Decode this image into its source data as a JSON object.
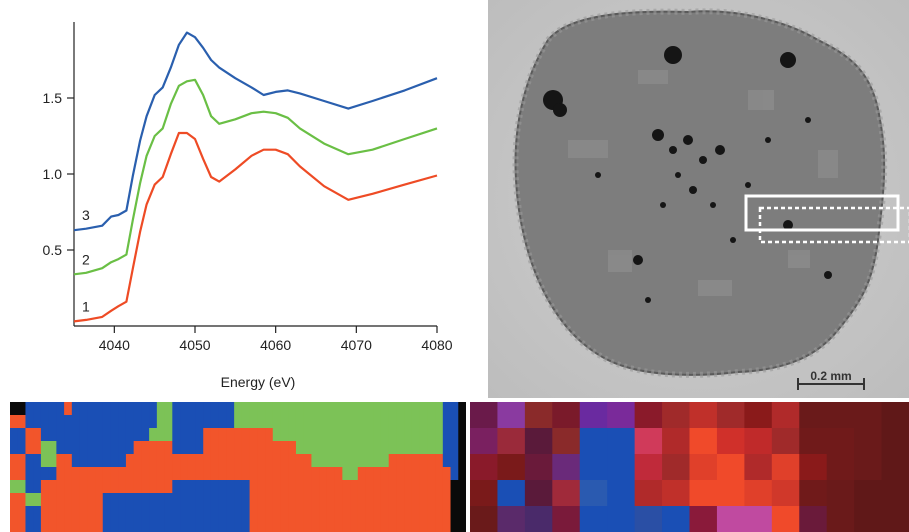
{
  "chart_data": {
    "type": "line",
    "title": "",
    "xlabel": "Energy (eV)",
    "ylabel": "",
    "xlim": [
      4035,
      4080
    ],
    "ylim": [
      0,
      2.0
    ],
    "xticks": [
      4040,
      4050,
      4060,
      4070,
      4080
    ],
    "yticks": [
      0.5,
      1.0,
      1.5
    ],
    "ytick_labels": [
      "0.5",
      "1.0",
      "1.5"
    ],
    "grid": false,
    "series": [
      {
        "name": "1",
        "color": "#ee4b25",
        "points": [
          [
            4035.0,
            0.03
          ],
          [
            4036.5,
            0.04
          ],
          [
            4038.5,
            0.06
          ],
          [
            4039.6,
            0.1
          ],
          [
            4040.5,
            0.13
          ],
          [
            4041.5,
            0.16
          ],
          [
            4042.3,
            0.38
          ],
          [
            4043.2,
            0.62
          ],
          [
            4044.0,
            0.8
          ],
          [
            4045.0,
            0.93
          ],
          [
            4046.0,
            0.98
          ],
          [
            4047.0,
            1.13
          ],
          [
            4048.0,
            1.27
          ],
          [
            4049.0,
            1.27
          ],
          [
            4050.0,
            1.23
          ],
          [
            4051.0,
            1.1
          ],
          [
            4052.0,
            0.98
          ],
          [
            4053.0,
            0.95
          ],
          [
            4055.0,
            1.03
          ],
          [
            4057.0,
            1.12
          ],
          [
            4058.5,
            1.16
          ],
          [
            4060.0,
            1.16
          ],
          [
            4061.5,
            1.13
          ],
          [
            4063.0,
            1.05
          ],
          [
            4066.0,
            0.92
          ],
          [
            4069.0,
            0.83
          ],
          [
            4072.0,
            0.87
          ],
          [
            4076.0,
            0.93
          ],
          [
            4080.0,
            0.99
          ]
        ]
      },
      {
        "name": "2",
        "color": "#6abf45",
        "points": [
          [
            4035.0,
            0.34
          ],
          [
            4036.5,
            0.35
          ],
          [
            4038.5,
            0.38
          ],
          [
            4039.6,
            0.42
          ],
          [
            4040.5,
            0.44
          ],
          [
            4041.5,
            0.47
          ],
          [
            4042.3,
            0.7
          ],
          [
            4043.2,
            0.94
          ],
          [
            4044.0,
            1.12
          ],
          [
            4045.0,
            1.25
          ],
          [
            4046.0,
            1.3
          ],
          [
            4047.0,
            1.46
          ],
          [
            4048.0,
            1.58
          ],
          [
            4049.0,
            1.61
          ],
          [
            4050.0,
            1.62
          ],
          [
            4051.0,
            1.52
          ],
          [
            4052.0,
            1.38
          ],
          [
            4053.0,
            1.33
          ],
          [
            4055.0,
            1.36
          ],
          [
            4057.0,
            1.4
          ],
          [
            4058.5,
            1.41
          ],
          [
            4060.0,
            1.4
          ],
          [
            4061.5,
            1.37
          ],
          [
            4063.0,
            1.3
          ],
          [
            4066.0,
            1.2
          ],
          [
            4069.0,
            1.13
          ],
          [
            4072.0,
            1.16
          ],
          [
            4076.0,
            1.23
          ],
          [
            4080.0,
            1.3
          ]
        ]
      },
      {
        "name": "3",
        "color": "#2a5fae",
        "points": [
          [
            4035.0,
            0.63
          ],
          [
            4036.5,
            0.64
          ],
          [
            4038.5,
            0.66
          ],
          [
            4039.6,
            0.72
          ],
          [
            4040.5,
            0.73
          ],
          [
            4041.5,
            0.76
          ],
          [
            4042.3,
            0.99
          ],
          [
            4043.2,
            1.22
          ],
          [
            4044.0,
            1.38
          ],
          [
            4045.0,
            1.52
          ],
          [
            4046.0,
            1.57
          ],
          [
            4047.0,
            1.7
          ],
          [
            4048.0,
            1.85
          ],
          [
            4049.0,
            1.93
          ],
          [
            4050.0,
            1.9
          ],
          [
            4051.0,
            1.83
          ],
          [
            4052.0,
            1.75
          ],
          [
            4053.0,
            1.7
          ],
          [
            4055.0,
            1.63
          ],
          [
            4057.0,
            1.57
          ],
          [
            4058.5,
            1.52
          ],
          [
            4060.0,
            1.54
          ],
          [
            4061.5,
            1.55
          ],
          [
            4063.0,
            1.53
          ],
          [
            4066.0,
            1.48
          ],
          [
            4069.0,
            1.43
          ],
          [
            4072.0,
            1.48
          ],
          [
            4076.0,
            1.55
          ],
          [
            4080.0,
            1.63
          ]
        ]
      }
    ]
  },
  "micrograph": {
    "scale_bar_label": "0.2 mm"
  },
  "map_left": {
    "colors": {
      "B": "#1a4fb5",
      "O": "#f2552b",
      "G": "#7cc257",
      "K": "#0a0a0a",
      "D": "#3a3a4a"
    },
    "rows": [
      "KKBBBBBOBBBBBBBBBBBGGBBBBBBBBGGGGGGGGGGGGGGGGGGGGGGGGGGGBBK",
      "OOBBBBBBBBBBBBBBBBBGGBBBBBBBBGGGGGGGGGGGGGGGGGGGGGGGGGGGBBK",
      "BBOOBBBBBBBBBBBBBBGGGBBBBOOOOOOOOOGGGGGGGGGGGGGGGGGGGGGGBBK",
      "BBOOGGBBBBBBBBBBOOOOOBBBBOOOOOOOOOOOOGGGGGGGGGGGGGGGGGGGBBK",
      "OOBBGGOOBBBBBBBOOOOOOOOOOOOOOOOOOOOOOOOGGGGGGGGGGOOOOOOOBBK",
      "OOBBBBOOOOOOOOOOOOOOOOOOOOOOOOOOOOOOOOOOOOOGGOOOOOOOOOOOOBK",
      "GGBBOOOOOOOOOOOOOOOOOBBBBBBBBBBOOOOOOOOOOOOOOOOOOOOOOOOOOKK",
      "OOGGOOOOOOOOBBBBBBBBBBBBBBBBBBBOOOOOOOOOOOOOOOOOOOOOOOOOOKK",
      "OOBBOOOOOOOOBBBBBBBBBBBBBBBBBBBOOOOOOOOOOOOOOOOOOOOOOOOOOKK",
      "OOBBOOOOOOOOBBBBBBBBBBBBBBBBBBBOOOOOOOOOOOOOOOOOOOOOOOOOOKK"
    ]
  },
  "map_right": {
    "rows": [
      [
        "#6a1a4a",
        "#8a3aa0",
        "#8a2a2a",
        "#7a1a2a",
        "#6a2aa0",
        "#7a2a9a",
        "#8a1a2a",
        "#a02a2a",
        "#c0302a",
        "#a02a2a",
        "#8a1a1a",
        "#b02a2a",
        "#6a1a1a",
        "#6a1a1a",
        "#6a1a1a",
        "#601818"
      ],
      [
        "#7a2060",
        "#9a2a3a",
        "#5a1a3a",
        "#8a2a2a",
        "#1a4fb5",
        "#1a4fb5",
        "#d03a5a",
        "#b02a2a",
        "#f04a2a",
        "#d0302a",
        "#c02a2a",
        "#a02a2a",
        "#701a1a",
        "#701a1a",
        "#6a1a1a",
        "#601818"
      ],
      [
        "#8a1a2a",
        "#7a1a1a",
        "#6a1a3a",
        "#6a2a7a",
        "#1a4fb5",
        "#1a4fb5",
        "#c02a3a",
        "#a02a2a",
        "#e0402a",
        "#f04a2a",
        "#b02a2a",
        "#e0402a",
        "#8a1a1a",
        "#701a1a",
        "#6a1a1a",
        "#601818"
      ],
      [
        "#7a1a1a",
        "#1a4fb5",
        "#5a1a3a",
        "#a02a3a",
        "#2a5ab0",
        "#1a4fb5",
        "#b02a2a",
        "#c0302a",
        "#f04a2a",
        "#f04a2a",
        "#e0402a",
        "#d0382a",
        "#701a1a",
        "#6a1a1a",
        "#601818",
        "#601818"
      ],
      [
        "#6a1a1a",
        "#5a2a6a",
        "#4a2a6a",
        "#7a1a3a",
        "#1a4fb5",
        "#1a4fb5",
        "#2a4fa5",
        "#1a4fb5",
        "#8a1a3a",
        "#c04aa0",
        "#c04aa0",
        "#f04a2a",
        "#6a1a3a",
        "#6a1a1a",
        "#601818",
        "#601818"
      ]
    ]
  }
}
